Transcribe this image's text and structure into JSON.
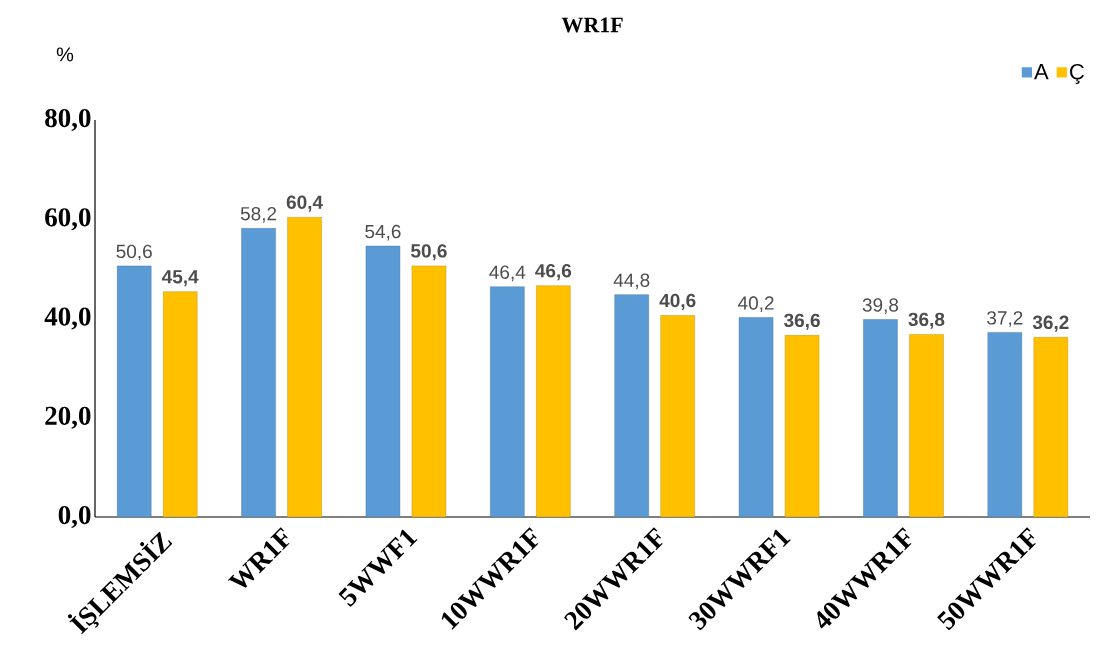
{
  "chart_data": {
    "type": "bar",
    "title": "WR1F",
    "ylabel": "%",
    "categories": [
      "İŞLEMSİZ",
      "WR1F",
      "5WWF1",
      "10WWR1F",
      "20WWR1F",
      "30WWRF1",
      "40WWR1F",
      "50WWR1F"
    ],
    "series": [
      {
        "name": "A",
        "color": "#5b9bd5",
        "values": [
          50.6,
          58.2,
          54.6,
          46.4,
          44.8,
          40.2,
          39.8,
          37.2
        ],
        "value_labels": [
          "50,6",
          "58,2",
          "54,6",
          "46,4",
          "44,8",
          "40,2",
          "39,8",
          "37,2"
        ]
      },
      {
        "name": "Ç",
        "color": "#ffc000",
        "values": [
          45.4,
          60.4,
          50.6,
          46.6,
          40.6,
          36.6,
          36.8,
          36.2
        ],
        "value_labels": [
          "45,4",
          "60,4",
          "50,6",
          "46,6",
          "40,6",
          "36,6",
          "36,8",
          "36,2"
        ]
      }
    ],
    "ylim": [
      0,
      80
    ],
    "yticks": [
      {
        "value": 0,
        "label": "0,0"
      },
      {
        "value": 20,
        "label": "20,0"
      },
      {
        "value": 40,
        "label": "40,0"
      },
      {
        "value": 60,
        "label": "60,0"
      },
      {
        "value": 80,
        "label": "80,0"
      }
    ],
    "legend": "top right",
    "grid": false
  }
}
